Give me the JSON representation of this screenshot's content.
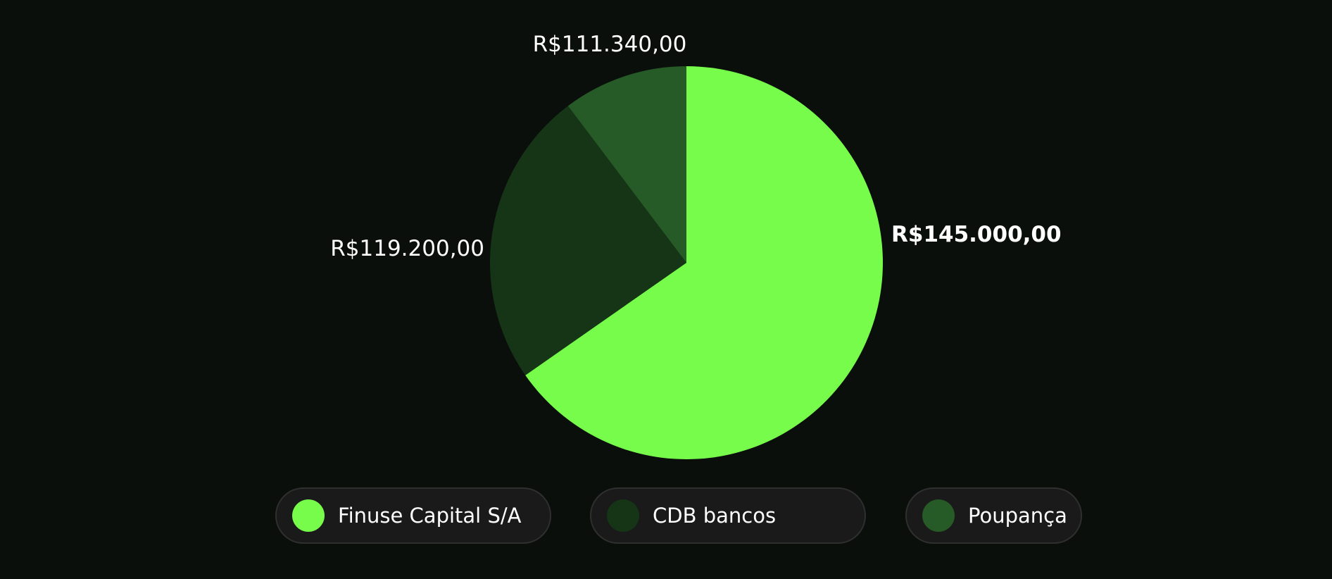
{
  "chart_data": {
    "type": "pie",
    "title": "",
    "slices": [
      {
        "name": "Finuse Capital S/A",
        "value": 145000.0,
        "label": "R$145.000,00",
        "color": "#77fc4b",
        "emphasized": true
      },
      {
        "name": "CDB bancos",
        "value": 119200.0,
        "label": "R$119.200,00",
        "color": "#163516",
        "emphasized": false
      },
      {
        "name": "Poupança",
        "value": 111340.0,
        "label": "R$111.340,00",
        "color": "#265a26",
        "emphasized": false
      }
    ],
    "legend_position": "bottom"
  },
  "legend": {
    "items": [
      {
        "label": "Finuse Capital S/A",
        "color": "#77fc4b"
      },
      {
        "label": "CDB bancos",
        "color": "#163516"
      },
      {
        "label": "Poupança",
        "color": "#265a26"
      }
    ]
  }
}
